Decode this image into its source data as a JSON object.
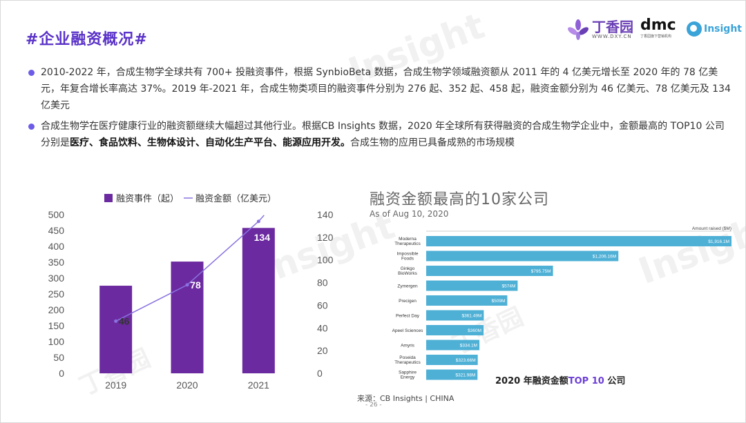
{
  "header": {
    "title": "#企业融资概况#",
    "logo_dxy_cn": "丁香园",
    "logo_dxy_url": "WWW.DXY.CN",
    "logo_dmc": "dmc",
    "logo_dmc_sub": "丁香园旗下营销机构",
    "logo_insight": "Insight"
  },
  "watermark": {
    "insight": "Insight",
    "dxy": "丁香园",
    "url": "WWW.DXY.CN"
  },
  "bullets": [
    {
      "parts": [
        {
          "text": "2010-2022 年，合成生物学全球共有 700+ 投融资事件，根据 SynbioBeta 数据，合成生物学领域融资额从 2011 年的 4 亿美元增长至 2020 年的 78 亿美元，年复合增长率高达 37%。2019 年-2021 年，合成生物类项目的融资事件分别为 276 起、352 起、458 起，融资金额分别为 46 亿美元、78 亿美元及 134 亿美元",
          "bold": false
        }
      ]
    },
    {
      "parts": [
        {
          "text": "合成生物学在医疗健康行业的融资额继续大幅超过其他行业。根据CB Insights 数据，2020 年全球所有获得融资的合成生物学企业中，金额最高的 TOP10 公司分别是",
          "bold": false
        },
        {
          "text": "医疗、食品饮料、生物体设计、自动化生产平台、能源应用开发。",
          "bold": true
        },
        {
          "text": "合成生物的应用已具备成熟的市场规模",
          "bold": false
        }
      ]
    }
  ],
  "chart_data": [
    {
      "type": "bar",
      "legend": [
        "融资事件（起）",
        "融资金额（亿美元）"
      ],
      "legend_position": "top",
      "categories": [
        "2019",
        "2020",
        "2021"
      ],
      "series": [
        {
          "name": "融资事件（起）",
          "type": "bar",
          "values": [
            276,
            352,
            458
          ],
          "color": "#6b2aa0",
          "axis": "left"
        },
        {
          "name": "融资金额（亿美元）",
          "type": "line",
          "values": [
            46,
            78,
            134
          ],
          "color": "#8a72e0",
          "axis": "right"
        }
      ],
      "ylim_left": [
        0,
        500
      ],
      "yticks_left": [
        "0",
        "50",
        "100",
        "150",
        "200",
        "250",
        "300",
        "350",
        "400",
        "450",
        "500"
      ],
      "ylim_right": [
        0,
        140
      ],
      "yticks_right": [
        "0",
        "20",
        "40",
        "60",
        "80",
        "100",
        "120",
        "140"
      ],
      "data_labels": [
        "46",
        "78",
        "134"
      ],
      "grid": false
    },
    {
      "type": "bar",
      "orientation": "horizontal",
      "title": "融资金额最高的10家公司",
      "subtitle": "As of Aug 10, 2020",
      "value_header": "Amount raised ($M)",
      "categories": [
        "Moderna Therapeutics",
        "Impossible Foods",
        "Ginkgo BioWorks",
        "Zymergen",
        "Precigen",
        "Perfect Day",
        "Apeel Sciences",
        "Amyris",
        "Poseida Therapeutics",
        "Sapphire Energy"
      ],
      "values": [
        1916.1,
        1206.16,
        795.75,
        574,
        509,
        361.49,
        360,
        334.1,
        323.66,
        321.98
      ],
      "value_labels": [
        "$1,916.1M",
        "$1,206.16M",
        "$795.75M",
        "$574M",
        "$509M",
        "$361.49M",
        "$360M",
        "$334.1M",
        "$323.66M",
        "$321.98M"
      ],
      "color": "#4fb0d6",
      "caption_main": "2020 年融资金额",
      "caption_hl": "TOP 10",
      "caption_tail": " 公司",
      "grid": false
    }
  ],
  "footer": {
    "source": "来源：CB Insights | CHINA",
    "page": "- 26 -"
  },
  "colors": {
    "title": "#5a32c8",
    "bullet": "#6c5ce7",
    "bar": "#6b2aa0",
    "line": "#8a72e0",
    "hbar": "#4fb0d6"
  }
}
